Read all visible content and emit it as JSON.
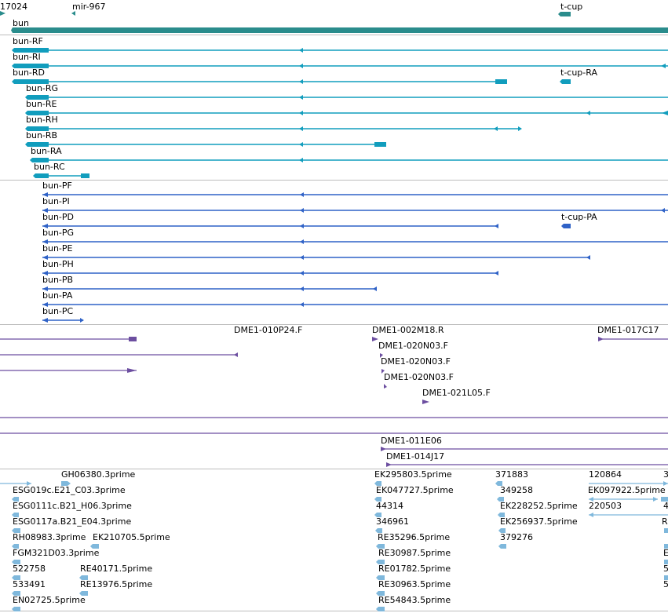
{
  "colors": {
    "gene": "#2a8c8c",
    "rna": "#119dbd",
    "protein": "#2f62c7",
    "clone": "#6c4ea0",
    "est": "#7fb8dc",
    "separator": "#bdbdbd"
  },
  "labels": {
    "coord_left": "17024",
    "mir_967": "mir-967",
    "t_cup": "t-cup",
    "bun": "bun",
    "bun_RF": "bun-RF",
    "bun_RI": "bun-RI",
    "bun_RD": "bun-RD",
    "t_cup_RA": "t-cup-RA",
    "bun_RG": "bun-RG",
    "bun_RE": "bun-RE",
    "bun_RH": "bun-RH",
    "bun_RB": "bun-RB",
    "bun_RA": "bun-RA",
    "bun_RC": "bun-RC",
    "bun_PF": "bun-PF",
    "bun_PI": "bun-PI",
    "bun_PD": "bun-PD",
    "t_cup_PA": "t-cup-PA",
    "bun_PG": "bun-PG",
    "bun_PE": "bun-PE",
    "bun_PH": "bun-PH",
    "bun_PB": "bun-PB",
    "bun_PA": "bun-PA",
    "bun_PC": "bun-PC",
    "dme_010P24": "DME1-010P24.F",
    "dme_002M18": "DME1-002M18.R",
    "dme_017C17": "DME1-017C17",
    "dme_020N03_a": "DME1-020N03.F",
    "dme_020N03_b": "DME1-020N03.F",
    "dme_020N03_c": "DME1-020N03.F",
    "dme_021L05": "DME1-021L05.F",
    "dme_011E06": "DME1-011E06",
    "dme_014J17": "DME1-014J17",
    "gh06380": "GH06380.3prime",
    "ek295803": "EK295803.5prime",
    "n371883": "371883",
    "n120864": "120864",
    "n3_edge": "3",
    "esg019c": "ESG019c.E21_C03.3prime",
    "ek047727": "EK047727.5prime",
    "n349258": "349258",
    "ek097922": "EK097922.5prime",
    "esg0111c": "ESG0111c.B21_H06.3prime",
    "n44314": "44314",
    "ek228252": "EK228252.5prime",
    "n220503": "220503",
    "n4_edge": "4",
    "esg0117a": "ESG0117a.B21_E04.3prime",
    "n346961": "346961",
    "ek256937": "EK256937.5prime",
    "r_edge": "R",
    "rh08983": "RH08983.3prime",
    "ek210705": "EK210705.5prime",
    "re35296": "RE35296.5prime",
    "n379276": "379276",
    "fgm321d03": "FGM321D03.3prime",
    "re30987": "RE30987.5prime",
    "e_edge": "E",
    "n522758": "522758",
    "re40171": "RE40171.5prime",
    "re01782": "RE01782.5prime",
    "n5_edge_a": "5",
    "n533491": "533491",
    "re13976": "RE13976.5prime",
    "re30963": "RE30963.5prime",
    "n5_edge_b": "5",
    "en02725": "EN02725.5prime",
    "re54843": "RE54843.5prime"
  }
}
